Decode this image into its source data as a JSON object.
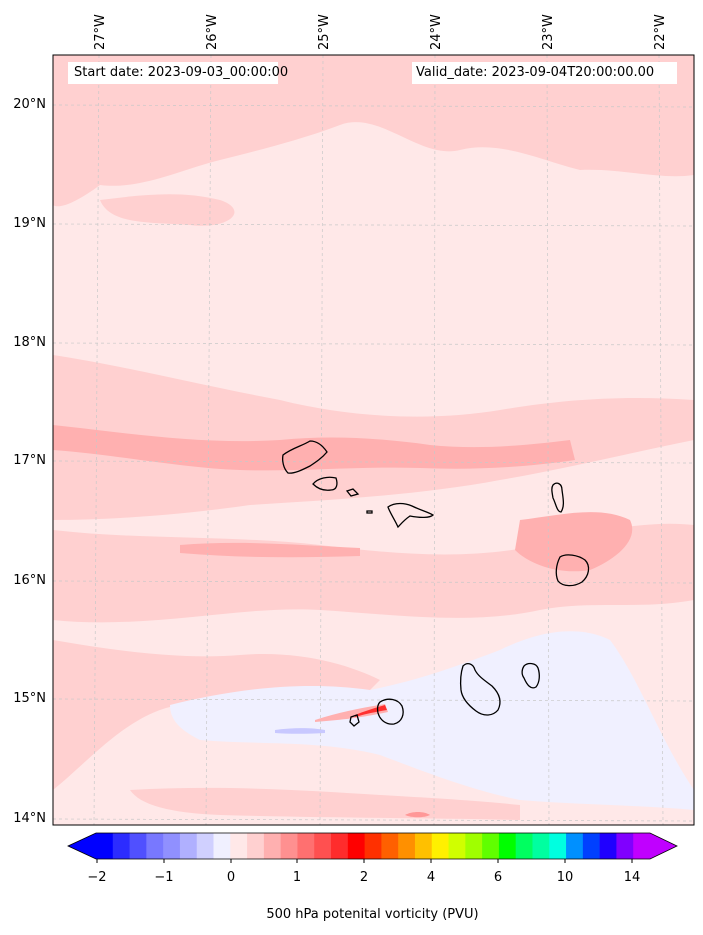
{
  "map": {
    "start_date": "Start date: 2023-09-03_00:00:00",
    "valid_date": "Valid_date: 2023-09-04T20:00:00.00",
    "lon_labels": [
      "27°W",
      "26°W",
      "25°W",
      "24°W",
      "23°W",
      "22°W"
    ],
    "lat_labels": [
      "20°N",
      "19°N",
      "18°N",
      "17°N",
      "16°N",
      "15°N",
      "14°N"
    ],
    "gridlines": true,
    "colors": {
      "lightest_pink": "#ffe8e8",
      "light_pink": "#ffd0d0",
      "medium_pink": "#ffb0b0",
      "red_streak": "#ff3030",
      "light_blue": "#f0f0ff",
      "blue_streak": "#c8c8ff",
      "coastline": "#000000"
    }
  },
  "colorbar": {
    "title": "500 hPa potenital vorticity (PVU)",
    "tick_labels": [
      "−2",
      "−1",
      "0",
      "1",
      "2",
      "4",
      "6",
      "10",
      "14"
    ],
    "colors": [
      "#0000ff",
      "#2c2cff",
      "#5050ff",
      "#7878ff",
      "#9090ff",
      "#b0b0ff",
      "#d0d0ff",
      "#f0f0ff",
      "#ffe8e8",
      "#ffd0d0",
      "#ffb0b0",
      "#ff9090",
      "#ff7070",
      "#ff5050",
      "#ff2c2c",
      "#ff0000",
      "#ff3000",
      "#ff6000",
      "#ff9000",
      "#ffc000",
      "#fff000",
      "#d0ff00",
      "#a0ff00",
      "#60ff00",
      "#00ff00",
      "#00ff60",
      "#00ffa0",
      "#00ffe0",
      "#0090ff",
      "#0040ff",
      "#2000ff",
      "#8000ff",
      "#c000ff"
    ]
  }
}
